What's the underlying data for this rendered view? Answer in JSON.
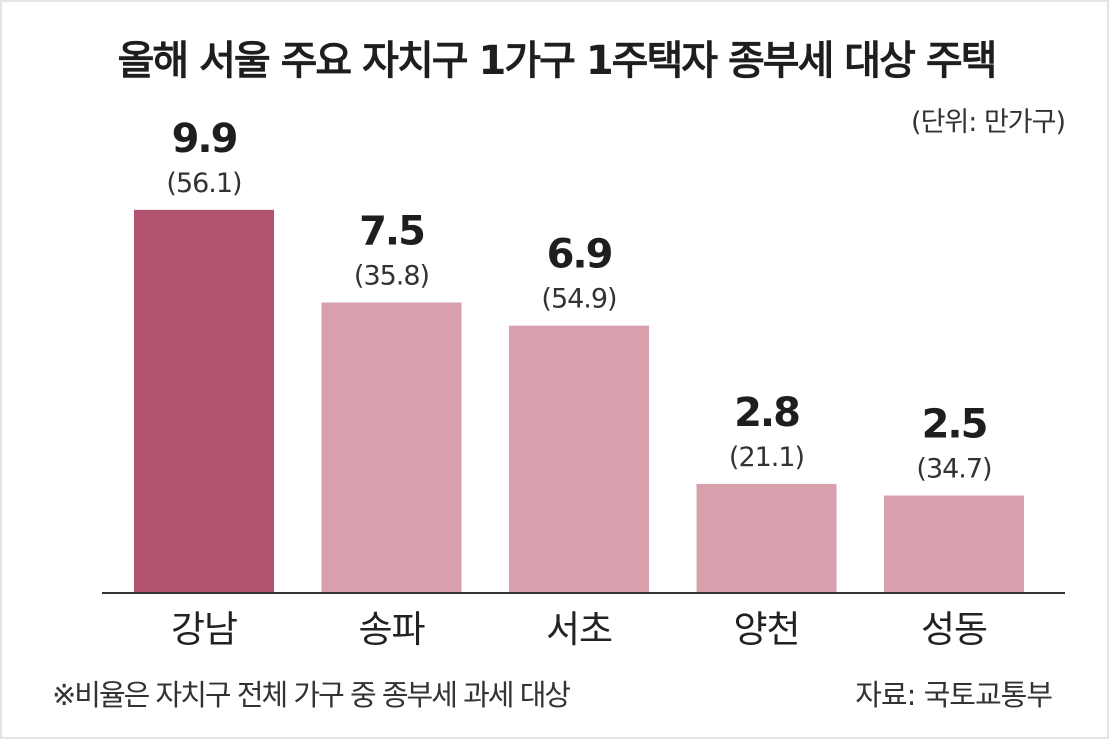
{
  "chart_data": {
    "type": "bar",
    "title": "올해 서울 주요 자치구 1가구 1주택자 종부세 대상 주택",
    "unit_note": "(단위: 만가구)",
    "categories": [
      "강남",
      "송파",
      "서초",
      "양천",
      "성동"
    ],
    "values": [
      9.9,
      7.5,
      6.9,
      2.8,
      2.5
    ],
    "ratios": [
      "(56.1)",
      "(35.8)",
      "(54.9)",
      "(21.1)",
      "(34.7)"
    ],
    "highlight_index": 0,
    "ylim": [
      0,
      10
    ],
    "grid": false,
    "colors": {
      "highlight": "#b2546f",
      "bar": "#d8a0ad",
      "baseline": "#333333"
    },
    "footnote": "※비율은 자치구 전체 가구 중 종부세 과세 대상",
    "source": "자료: 국토교통부"
  }
}
